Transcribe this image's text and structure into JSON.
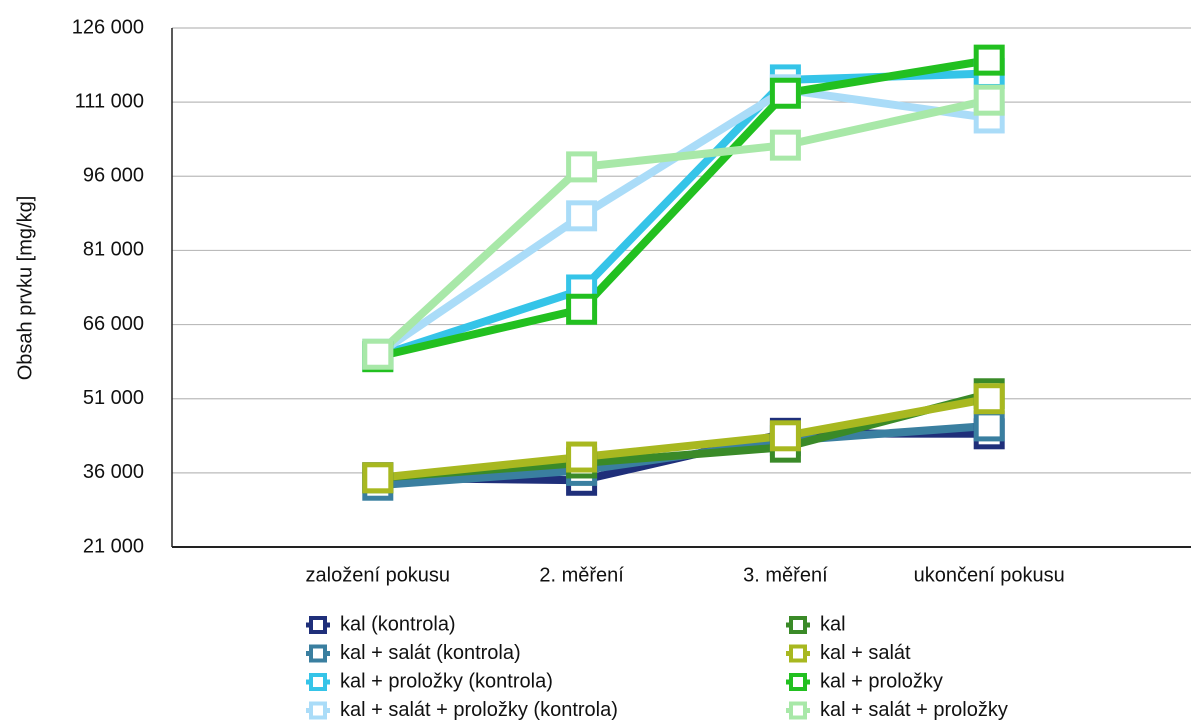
{
  "chart_data": {
    "type": "line",
    "y_label": "Obsah prvku [mg/kg]",
    "categories": [
      "založení pokusu",
      "2. měření",
      "3. měření",
      "ukončení pokusu"
    ],
    "ylim": [
      21000,
      126000
    ],
    "yticks": [
      {
        "value": 21000,
        "label": "21 000"
      },
      {
        "value": 36000,
        "label": "36 000"
      },
      {
        "value": 51000,
        "label": "51 000"
      },
      {
        "value": 66000,
        "label": "66 000"
      },
      {
        "value": 81000,
        "label": "81 000"
      },
      {
        "value": 96000,
        "label": "96 000"
      },
      {
        "value": 111000,
        "label": "111 000"
      },
      {
        "value": 126000,
        "label": "126 000"
      }
    ],
    "grid": true,
    "series": [
      {
        "name": "kal (kontrola)",
        "color": "#1f2f7a",
        "values": [
          35000,
          34500,
          44000,
          43900
        ]
      },
      {
        "name": "kal + salát (kontrola)",
        "color": "#3a7fa0",
        "values": [
          33500,
          36500,
          42500,
          45500
        ]
      },
      {
        "name": "kal + proložky (kontrola)",
        "color": "#35c4e8",
        "values": [
          59600,
          73000,
          115500,
          116800
        ]
      },
      {
        "name": "kal + salát + proložky (kontrola)",
        "color": "#aadcf8",
        "values": [
          60000,
          88000,
          113500,
          107800
        ]
      },
      {
        "name": "kal",
        "color": "#3a8a28",
        "values": [
          35000,
          38000,
          41200,
          52000
        ]
      },
      {
        "name": "kal + salát",
        "color": "#a8b820",
        "values": [
          35000,
          39200,
          43500,
          51000
        ]
      },
      {
        "name": "kal + proložky",
        "color": "#22c020",
        "values": [
          59500,
          69100,
          112800,
          119500
        ]
      },
      {
        "name": "kal + salát + proložky",
        "color": "#a8e8a8",
        "values": [
          60000,
          97900,
          102300,
          111400
        ]
      }
    ]
  }
}
